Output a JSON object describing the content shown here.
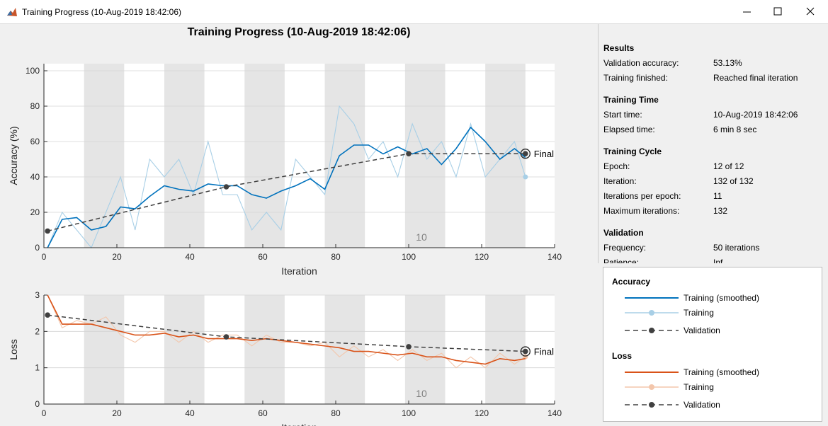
{
  "window": {
    "title": "Training Progress (10-Aug-2019 18:42:06)"
  },
  "charts": [
    {
      "type": "line",
      "title": "Training Progress (10-Aug-2019 18:42:06)",
      "xlabel": "Iteration",
      "ylabel": "Accuracy (%)",
      "xlim": [
        0,
        140
      ],
      "xticks": [
        0,
        20,
        40,
        60,
        80,
        100,
        120,
        140
      ],
      "ylim": [
        0,
        104
      ],
      "yticks": [
        0,
        20,
        40,
        60,
        80,
        100
      ],
      "grid": true,
      "shaded_epochs": [
        [
          11,
          22
        ],
        [
          33,
          44
        ],
        [
          55,
          66
        ],
        [
          77,
          88
        ],
        [
          99,
          110
        ],
        [
          121,
          132
        ]
      ],
      "epoch_label": "10",
      "final_label": "Final",
      "legend_title": "Accuracy",
      "series": [
        {
          "name": "Training (smoothed)",
          "color": "#0072bd",
          "x": [
            1,
            5,
            9,
            13,
            17,
            21,
            25,
            29,
            33,
            37,
            41,
            45,
            49,
            53,
            57,
            61,
            65,
            69,
            73,
            77,
            81,
            85,
            89,
            93,
            97,
            101,
            105,
            109,
            113,
            117,
            121,
            125,
            129,
            132
          ],
          "values": [
            0,
            16,
            17,
            10,
            12,
            23,
            22,
            29,
            35,
            33,
            32,
            36,
            35,
            35,
            30,
            28,
            32,
            35,
            39,
            33,
            52,
            58,
            58,
            53,
            57,
            53,
            56,
            47,
            56,
            68,
            60,
            50,
            56,
            51
          ]
        },
        {
          "name": "Training",
          "color": "#a8cfe6",
          "x": [
            1,
            5,
            9,
            13,
            17,
            21,
            25,
            29,
            33,
            37,
            41,
            45,
            49,
            53,
            57,
            61,
            65,
            69,
            73,
            77,
            81,
            85,
            89,
            93,
            97,
            101,
            105,
            109,
            113,
            117,
            121,
            125,
            129,
            132
          ],
          "values": [
            0,
            20,
            10,
            0,
            20,
            40,
            10,
            50,
            40,
            50,
            30,
            60,
            30,
            30,
            10,
            20,
            10,
            50,
            40,
            30,
            80,
            70,
            50,
            60,
            40,
            70,
            50,
            60,
            40,
            70,
            40,
            50,
            60,
            40
          ]
        },
        {
          "name": "Validation",
          "color": "#404040",
          "x": [
            1,
            50,
            100,
            132
          ],
          "values": [
            9.4,
            34.4,
            53.1,
            53.13
          ]
        }
      ]
    },
    {
      "type": "line",
      "xlabel": "Iteration",
      "ylabel": "Loss",
      "xlim": [
        0,
        140
      ],
      "xticks": [
        0,
        20,
        40,
        60,
        80,
        100,
        120,
        140
      ],
      "ylim": [
        0,
        3
      ],
      "yticks": [
        0,
        1,
        2,
        3
      ],
      "grid": true,
      "shaded_epochs": [
        [
          11,
          22
        ],
        [
          33,
          44
        ],
        [
          55,
          66
        ],
        [
          77,
          88
        ],
        [
          99,
          110
        ],
        [
          121,
          132
        ]
      ],
      "epoch_label": "10",
      "final_label": "Final",
      "legend_title": "Loss",
      "series": [
        {
          "name": "Training (smoothed)",
          "color": "#d95319",
          "x": [
            1,
            5,
            9,
            13,
            17,
            21,
            25,
            29,
            33,
            37,
            41,
            45,
            49,
            53,
            57,
            61,
            65,
            69,
            73,
            77,
            81,
            85,
            89,
            93,
            97,
            101,
            105,
            109,
            113,
            117,
            121,
            125,
            129,
            132
          ],
          "values": [
            3.0,
            2.2,
            2.2,
            2.2,
            2.1,
            2.0,
            1.9,
            1.9,
            1.95,
            1.85,
            1.9,
            1.8,
            1.8,
            1.8,
            1.75,
            1.8,
            1.75,
            1.7,
            1.65,
            1.6,
            1.55,
            1.45,
            1.45,
            1.4,
            1.35,
            1.4,
            1.3,
            1.3,
            1.2,
            1.15,
            1.1,
            1.25,
            1.2,
            1.25
          ]
        },
        {
          "name": "Training",
          "color": "#f3c6ab",
          "x": [
            1,
            5,
            9,
            13,
            17,
            21,
            25,
            29,
            33,
            37,
            41,
            45,
            49,
            53,
            57,
            61,
            65,
            69,
            73,
            77,
            81,
            85,
            89,
            93,
            97,
            101,
            105,
            109,
            113,
            117,
            121,
            125,
            129,
            132
          ],
          "values": [
            3.0,
            2.1,
            2.3,
            2.2,
            2.4,
            1.9,
            1.7,
            2.0,
            2.0,
            1.7,
            2.0,
            1.7,
            1.9,
            1.9,
            1.6,
            1.9,
            1.7,
            1.7,
            1.6,
            1.7,
            1.3,
            1.6,
            1.3,
            1.5,
            1.2,
            1.5,
            1.2,
            1.4,
            1.0,
            1.3,
            1.0,
            1.4,
            1.1,
            1.3
          ]
        },
        {
          "name": "Validation",
          "color": "#404040",
          "x": [
            1,
            50,
            100,
            132
          ],
          "values": [
            2.45,
            1.85,
            1.58,
            1.45
          ]
        }
      ]
    }
  ],
  "panel": {
    "sections": [
      {
        "heading": "Results",
        "rows": [
          [
            "Validation accuracy:",
            "53.13%"
          ],
          [
            "Training finished:",
            "Reached final iteration"
          ]
        ]
      },
      {
        "heading": "Training Time",
        "rows": [
          [
            "Start time:",
            "10-Aug-2019 18:42:06"
          ],
          [
            "Elapsed time:",
            "6 min 8 sec"
          ]
        ]
      },
      {
        "heading": "Training Cycle",
        "rows": [
          [
            "Epoch:",
            "12 of 12"
          ],
          [
            "Iteration:",
            "132 of 132"
          ],
          [
            "Iterations per epoch:",
            "11"
          ],
          [
            "Maximum iterations:",
            "132"
          ]
        ]
      },
      {
        "heading": "Validation",
        "rows": [
          [
            "Frequency:",
            "50 iterations"
          ],
          [
            "Patience:",
            "Inf"
          ]
        ]
      }
    ]
  }
}
